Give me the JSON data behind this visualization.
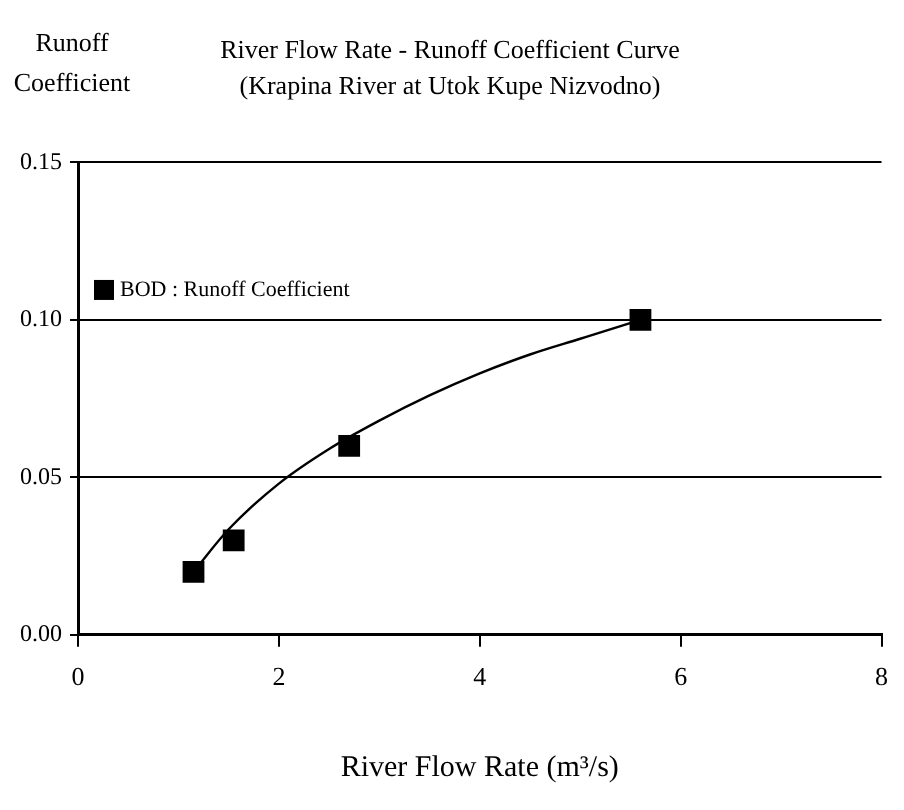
{
  "chart_data": {
    "type": "scatter",
    "title": "River Flow Rate - Runoff Coefficient Curve",
    "subtitle": "(Krapina River at Utok Kupe Nizvodno)",
    "xlabel": "River Flow Rate (m³/s)",
    "ylabel": "Runoff Coefficient",
    "xlim": [
      0,
      8
    ],
    "xticks": [
      0,
      2,
      4,
      6,
      8
    ],
    "ylim": [
      0,
      0.15
    ],
    "yticks": [
      {
        "value": 0,
        "label": "0.00"
      },
      {
        "value": 0.05,
        "label": "0.05"
      },
      {
        "value": 0.1,
        "label": "0.10"
      },
      {
        "value": 0.15,
        "label": "0.15"
      }
    ],
    "grid": "y",
    "legend": "top left",
    "marker": "square",
    "series": [
      {
        "name": "BOD : Runoff Coefficient",
        "color": "#000000",
        "x": [
          1.15,
          1.55,
          2.7,
          5.6
        ],
        "values": [
          0.02,
          0.03,
          0.06,
          0.1
        ]
      },
      {
        "type": "line",
        "color": "#000000",
        "marker": "none",
        "x": [
          1.15,
          1.5,
          2,
          2.5,
          3,
          3.5,
          4,
          4.5,
          5,
          5.6
        ],
        "values": [
          0.02,
          0.0335,
          0.048,
          0.059,
          0.068,
          0.076,
          0.083,
          0.089,
          0.094,
          0.1
        ]
      }
    ]
  }
}
